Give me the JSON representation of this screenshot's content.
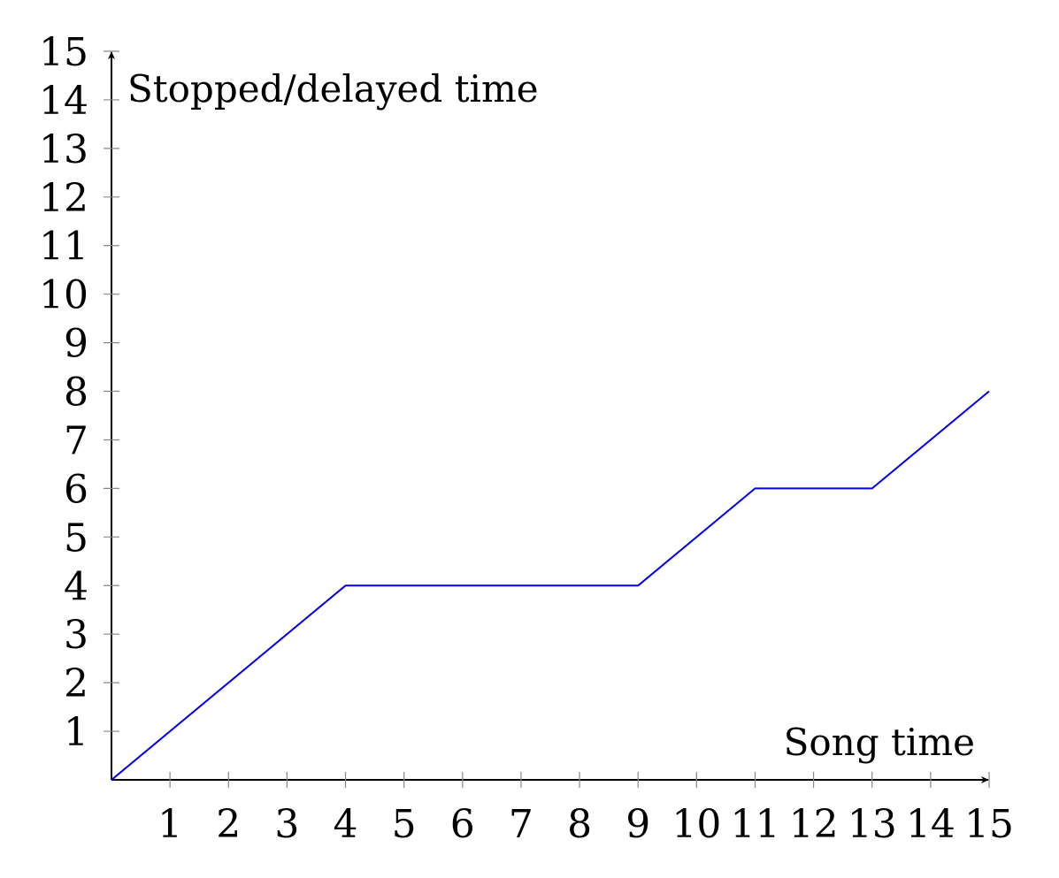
{
  "chart_data": {
    "type": "line",
    "xlabel": "Song time",
    "ylabel": "Stopped/delayed time",
    "xlim": [
      0,
      15
    ],
    "ylim": [
      0,
      15
    ],
    "x_ticks": [
      "1",
      "2",
      "3",
      "4",
      "5",
      "6",
      "7",
      "8",
      "9",
      "10",
      "11",
      "12",
      "13",
      "14",
      "15"
    ],
    "y_ticks": [
      "1",
      "2",
      "3",
      "4",
      "5",
      "6",
      "7",
      "8",
      "9",
      "10",
      "11",
      "12",
      "13",
      "14",
      "15"
    ],
    "grid": false,
    "series": [
      {
        "color": "#0000ee",
        "points": [
          [
            0,
            0
          ],
          [
            4,
            4
          ],
          [
            9,
            4
          ],
          [
            11,
            6
          ],
          [
            13,
            6
          ],
          [
            15,
            8
          ]
        ]
      }
    ]
  }
}
